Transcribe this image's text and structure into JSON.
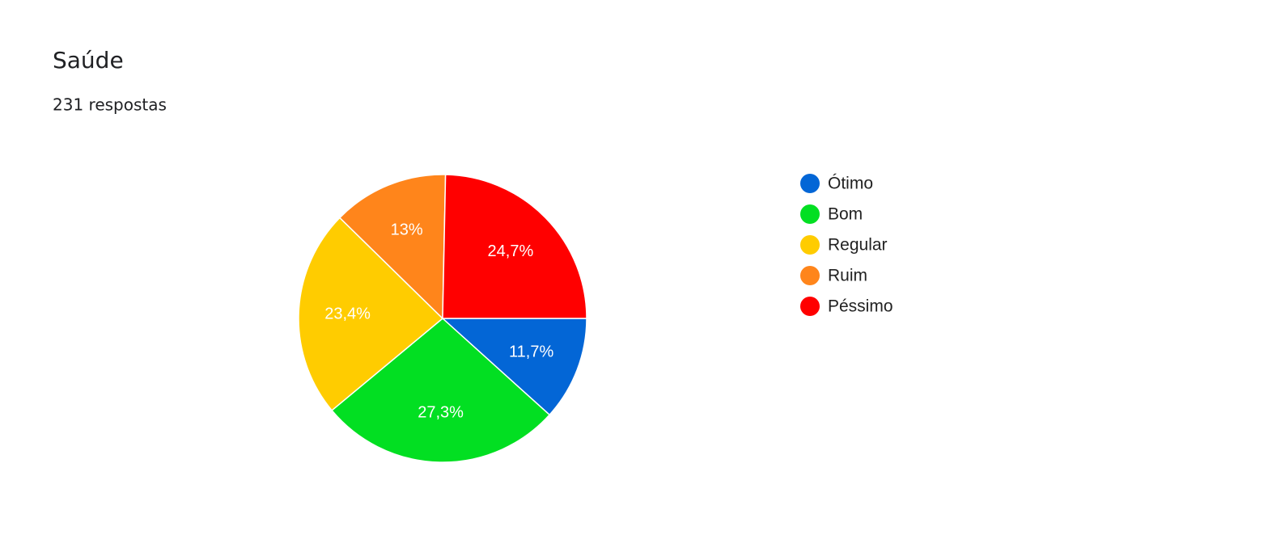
{
  "chart_data": {
    "type": "pie",
    "title": "Saúde",
    "subtitle": "231 respostas",
    "categories": [
      "Ótimo",
      "Bom",
      "Regular",
      "Ruim",
      "Péssimo"
    ],
    "values": [
      11.7,
      27.3,
      23.4,
      13,
      24.7
    ],
    "value_labels": [
      "11,7%",
      "27,3%",
      "23,4%",
      "13%",
      "24,7%"
    ],
    "colors": [
      "#0366d6",
      "#02df22",
      "#ffcc00",
      "#ff851b",
      "#ff0000"
    ],
    "legend": "right"
  }
}
